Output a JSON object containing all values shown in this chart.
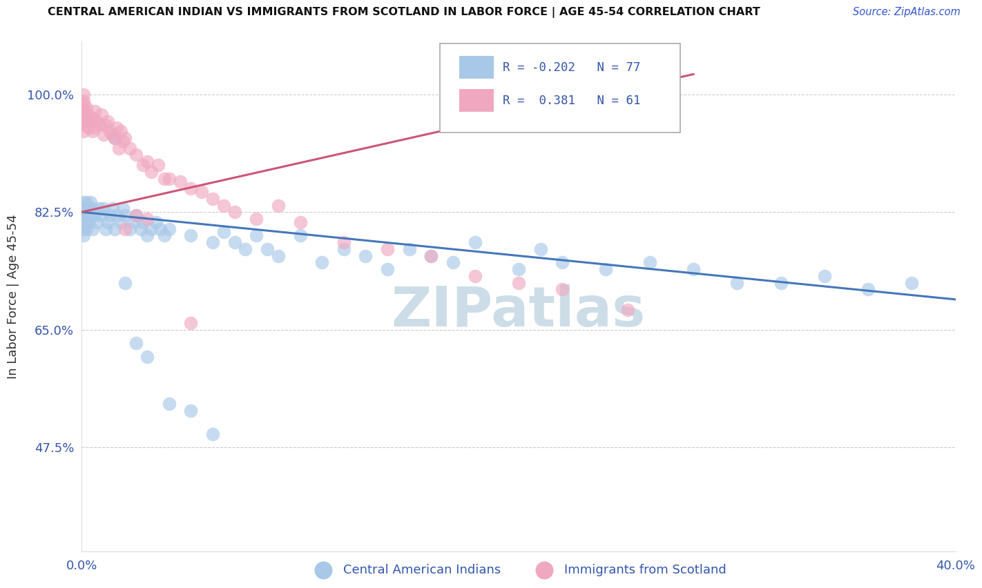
{
  "title": "CENTRAL AMERICAN INDIAN VS IMMIGRANTS FROM SCOTLAND IN LABOR FORCE | AGE 45-54 CORRELATION CHART",
  "source": "Source: ZipAtlas.com",
  "ylabel": "In Labor Force | Age 45-54",
  "xlim": [
    0.0,
    0.4
  ],
  "ylim": [
    0.32,
    1.08
  ],
  "yticks": [
    0.475,
    0.65,
    0.825,
    1.0
  ],
  "ytick_labels": [
    "47.5%",
    "65.0%",
    "82.5%",
    "100.0%"
  ],
  "xticks": [
    0.0,
    0.1,
    0.2,
    0.3,
    0.4
  ],
  "xtick_labels": [
    "0.0%",
    "",
    "",
    "",
    "40.0%"
  ],
  "legend_r_blue": "-0.202",
  "legend_n_blue": "77",
  "legend_r_pink": "0.381",
  "legend_n_pink": "61",
  "blue_color": "#a8c8e8",
  "pink_color": "#f0a8c0",
  "line_blue": "#4477bb",
  "line_pink": "#cc5577",
  "watermark_color": "#cddde8",
  "blue_line_x": [
    0.0,
    0.4
  ],
  "blue_line_y": [
    0.825,
    0.695
  ],
  "pink_line_x": [
    0.0,
    0.28
  ],
  "pink_line_y": [
    0.825,
    1.03
  ],
  "blue_x": [
    0.001,
    0.001,
    0.001,
    0.001,
    0.001,
    0.001,
    0.001,
    0.001,
    0.002,
    0.002,
    0.002,
    0.003,
    0.003,
    0.004,
    0.004,
    0.005,
    0.005,
    0.006,
    0.007,
    0.008,
    0.009,
    0.01,
    0.011,
    0.012,
    0.013,
    0.014,
    0.015,
    0.016,
    0.018,
    0.019,
    0.02,
    0.022,
    0.024,
    0.025,
    0.027,
    0.028,
    0.03,
    0.032,
    0.034,
    0.036,
    0.038,
    0.04,
    0.05,
    0.06,
    0.065,
    0.07,
    0.075,
    0.08,
    0.085,
    0.09,
    0.1,
    0.11,
    0.12,
    0.13,
    0.14,
    0.15,
    0.16,
    0.17,
    0.18,
    0.2,
    0.21,
    0.22,
    0.24,
    0.26,
    0.28,
    0.3,
    0.32,
    0.34,
    0.36,
    0.38,
    0.015,
    0.02,
    0.025,
    0.03,
    0.04,
    0.05,
    0.06
  ],
  "blue_y": [
    0.825,
    0.83,
    0.84,
    0.82,
    0.81,
    0.8,
    0.79,
    0.83,
    0.84,
    0.82,
    0.8,
    0.83,
    0.81,
    0.84,
    0.82,
    0.83,
    0.8,
    0.82,
    0.81,
    0.83,
    0.82,
    0.83,
    0.8,
    0.81,
    0.82,
    0.83,
    0.8,
    0.82,
    0.81,
    0.83,
    0.82,
    0.8,
    0.81,
    0.82,
    0.8,
    0.81,
    0.79,
    0.8,
    0.81,
    0.8,
    0.79,
    0.8,
    0.79,
    0.78,
    0.795,
    0.78,
    0.77,
    0.79,
    0.77,
    0.76,
    0.79,
    0.75,
    0.77,
    0.76,
    0.74,
    0.77,
    0.76,
    0.75,
    0.78,
    0.74,
    0.77,
    0.75,
    0.74,
    0.75,
    0.74,
    0.72,
    0.72,
    0.73,
    0.71,
    0.72,
    0.935,
    0.72,
    0.63,
    0.61,
    0.54,
    0.53,
    0.495
  ],
  "pink_x": [
    0.001,
    0.001,
    0.001,
    0.001,
    0.001,
    0.001,
    0.001,
    0.001,
    0.001,
    0.001,
    0.002,
    0.002,
    0.003,
    0.003,
    0.004,
    0.005,
    0.005,
    0.006,
    0.006,
    0.007,
    0.008,
    0.009,
    0.01,
    0.011,
    0.012,
    0.013,
    0.014,
    0.015,
    0.016,
    0.017,
    0.018,
    0.019,
    0.02,
    0.022,
    0.025,
    0.028,
    0.03,
    0.032,
    0.035,
    0.038,
    0.04,
    0.045,
    0.05,
    0.055,
    0.06,
    0.065,
    0.07,
    0.08,
    0.09,
    0.1,
    0.12,
    0.14,
    0.16,
    0.18,
    0.2,
    0.22,
    0.25,
    0.02,
    0.025,
    0.03,
    0.05
  ],
  "pink_y": [
    1.0,
    0.99,
    0.975,
    0.96,
    0.97,
    0.985,
    0.965,
    0.955,
    0.945,
    0.975,
    0.98,
    0.96,
    0.97,
    0.95,
    0.96,
    0.965,
    0.945,
    0.975,
    0.95,
    0.96,
    0.955,
    0.97,
    0.94,
    0.955,
    0.96,
    0.945,
    0.94,
    0.935,
    0.95,
    0.92,
    0.945,
    0.93,
    0.935,
    0.92,
    0.91,
    0.895,
    0.9,
    0.885,
    0.895,
    0.875,
    0.875,
    0.87,
    0.86,
    0.855,
    0.845,
    0.835,
    0.825,
    0.815,
    0.835,
    0.81,
    0.78,
    0.77,
    0.76,
    0.73,
    0.72,
    0.71,
    0.68,
    0.8,
    0.82,
    0.815,
    0.66
  ]
}
